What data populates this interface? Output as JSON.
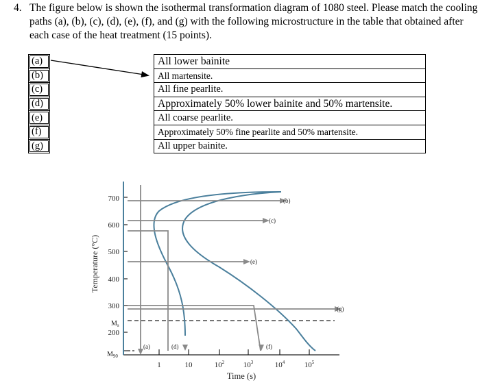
{
  "question": {
    "number": "4.",
    "text": "The figure below is shown the isothermal transformation diagram of 1080 steel. Please match the cooling paths (a), (b), (c), (d), (e), (f), and (g) with the following microstructure in the table that obtained after each case of the heat treatment (15 points)."
  },
  "path_labels": [
    "(a)",
    "(b)",
    "(c)",
    "(d)",
    "(e)",
    "(f)",
    "(g)"
  ],
  "microstructures": [
    "All lower bainite",
    "All martensite.",
    "All fine pearlite.",
    "Approximately 50% lower bainite and 50% martensite.",
    "All coarse pearlite.",
    "Approximately 50% fine pearlite and 50% martensite.",
    "All upper bainite."
  ],
  "example_match": {
    "from": "(a)",
    "to": "All martensite."
  },
  "diagram": {
    "ylabel": "Temperature (°C)",
    "xlabel": "Time (s)",
    "y_ticks": [
      "700",
      "600",
      "500",
      "400",
      "300",
      "200"
    ],
    "ms_label": "M",
    "ms_sub": "s",
    "m90_label": "M",
    "m90_sub": "90",
    "x_ticks": [
      {
        "base": "1",
        "exp": ""
      },
      {
        "base": "10",
        "exp": ""
      },
      {
        "base": "10",
        "exp": "2"
      },
      {
        "base": "10",
        "exp": "3"
      },
      {
        "base": "10",
        "exp": "4"
      },
      {
        "base": "10",
        "exp": "5"
      }
    ],
    "path_tags": [
      "(a)",
      "(b)",
      "(c)",
      "(d)",
      "(e)",
      "(f)",
      "(g)"
    ],
    "colors": {
      "curve": "#4a7f9c",
      "path": "#8a8a8a",
      "axis": "#222222"
    }
  }
}
